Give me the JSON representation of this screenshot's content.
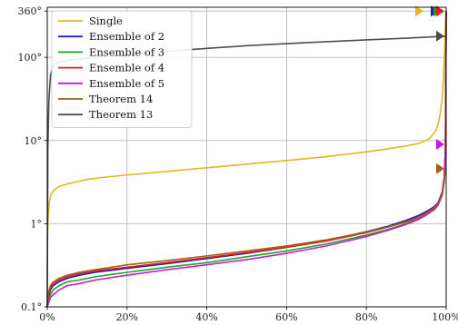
{
  "chart_data": {
    "type": "line",
    "title": "",
    "xlabel": "",
    "ylabel": "",
    "xlim": [
      0,
      100
    ],
    "ylim": [
      0.1,
      400
    ],
    "yscale": "log",
    "grid": true,
    "legend_position": "top-left",
    "x_ticks": [
      {
        "value": 0,
        "label": "0%"
      },
      {
        "value": 20,
        "label": "20%"
      },
      {
        "value": 40,
        "label": "40%"
      },
      {
        "value": 60,
        "label": "60%"
      },
      {
        "value": 80,
        "label": "80%"
      },
      {
        "value": 100,
        "label": "100%"
      }
    ],
    "y_ticks": [
      {
        "value": 0.1,
        "label": "0.1°"
      },
      {
        "value": 1,
        "label": "1°"
      },
      {
        "value": 10,
        "label": "10°"
      },
      {
        "value": 100,
        "label": "100°"
      },
      {
        "value": 360,
        "label": "360°"
      }
    ],
    "series": [
      {
        "name": "Single",
        "color": "#E6B422",
        "x": [
          0,
          0.2,
          0.5,
          1,
          2,
          3,
          5,
          8,
          10,
          15,
          20,
          30,
          40,
          50,
          60,
          70,
          80,
          85,
          90,
          93,
          95,
          96,
          97,
          97.5,
          98,
          98.5,
          99,
          99.3,
          99.6,
          99.8,
          100
        ],
        "y": [
          0.6,
          1.1,
          1.8,
          2.3,
          2.6,
          2.8,
          3.0,
          3.25,
          3.4,
          3.65,
          3.85,
          4.25,
          4.7,
          5.2,
          5.75,
          6.4,
          7.3,
          7.9,
          8.6,
          9.2,
          10.0,
          10.8,
          12.3,
          13.5,
          16.0,
          21.0,
          32.0,
          55.0,
          120,
          250,
          360
        ],
        "end_marker": 360
      },
      {
        "name": "Ensemble of 2",
        "color": "#1f1fbf",
        "x": [
          0,
          0.3,
          0.8,
          1.5,
          3,
          5,
          8,
          12,
          20,
          30,
          40,
          50,
          60,
          70,
          80,
          85,
          90,
          93,
          95,
          97,
          98,
          99,
          99.5,
          99.8,
          100
        ],
        "y": [
          0.1,
          0.13,
          0.16,
          0.18,
          0.2,
          0.22,
          0.24,
          0.26,
          0.29,
          0.33,
          0.38,
          0.44,
          0.52,
          0.63,
          0.8,
          0.92,
          1.1,
          1.25,
          1.4,
          1.6,
          1.8,
          2.4,
          3.6,
          8.0,
          360
        ],
        "end_marker": 360
      },
      {
        "name": "Ensemble of 3",
        "color": "#1aa61a",
        "x": [
          0,
          0.3,
          0.8,
          1.5,
          3,
          5,
          8,
          12,
          20,
          30,
          40,
          50,
          60,
          70,
          80,
          85,
          90,
          93,
          95,
          97,
          98,
          99,
          99.5,
          99.8,
          100
        ],
        "y": [
          0.1,
          0.12,
          0.14,
          0.16,
          0.18,
          0.2,
          0.21,
          0.23,
          0.26,
          0.3,
          0.34,
          0.4,
          0.47,
          0.57,
          0.73,
          0.84,
          1.0,
          1.15,
          1.3,
          1.5,
          1.7,
          2.2,
          3.3,
          7.5,
          360
        ],
        "end_marker": 360
      },
      {
        "name": "Ensemble of 4",
        "color": "#e01c1c",
        "x": [
          0,
          0.3,
          0.8,
          1.5,
          3,
          5,
          8,
          12,
          20,
          30,
          40,
          50,
          60,
          70,
          80,
          85,
          90,
          93,
          95,
          97,
          98,
          99,
          99.5,
          99.8,
          100
        ],
        "y": [
          0.1,
          0.14,
          0.17,
          0.19,
          0.21,
          0.23,
          0.25,
          0.27,
          0.3,
          0.34,
          0.39,
          0.45,
          0.52,
          0.62,
          0.78,
          0.9,
          1.06,
          1.2,
          1.35,
          1.55,
          1.75,
          2.3,
          3.4,
          7.8,
          360
        ],
        "end_marker": 360
      },
      {
        "name": "Ensemble of 5",
        "color": "#c21ce0",
        "x": [
          0,
          0.3,
          0.8,
          1.5,
          3,
          5,
          8,
          12,
          20,
          30,
          40,
          50,
          60,
          70,
          80,
          85,
          90,
          93,
          95,
          97,
          98,
          99,
          99.5,
          99.8,
          100
        ],
        "y": [
          0.1,
          0.11,
          0.13,
          0.14,
          0.16,
          0.18,
          0.19,
          0.21,
          0.24,
          0.28,
          0.32,
          0.37,
          0.44,
          0.54,
          0.7,
          0.82,
          0.98,
          1.12,
          1.27,
          1.47,
          1.67,
          2.2,
          3.2,
          7.2,
          9.0
        ],
        "end_marker": 9.0
      },
      {
        "name": "Theorem 14",
        "color": "#a0601c",
        "x": [
          0,
          0.3,
          0.8,
          1.5,
          3,
          5,
          8,
          12,
          20,
          30,
          40,
          50,
          60,
          70,
          80,
          85,
          90,
          93,
          95,
          97,
          98,
          99,
          99.5,
          99.8,
          100
        ],
        "y": [
          0.1,
          0.15,
          0.18,
          0.2,
          0.22,
          0.24,
          0.26,
          0.28,
          0.32,
          0.36,
          0.41,
          0.47,
          0.54,
          0.64,
          0.79,
          0.9,
          1.05,
          1.18,
          1.32,
          1.52,
          1.72,
          2.25,
          3.3,
          4.4,
          4.6
        ],
        "end_marker": 4.6
      },
      {
        "name": "Theorem 13",
        "color": "#4d4d4d",
        "x": [
          0,
          0.15,
          0.4,
          0.8,
          1.5,
          3,
          5,
          8,
          12,
          20,
          30,
          40,
          50,
          60,
          70,
          80,
          90,
          95,
          100
        ],
        "y": [
          0.1,
          8,
          30,
          60,
          80,
          88,
          92,
          95,
          100,
          108,
          118,
          128,
          138,
          146,
          154,
          162,
          170,
          175,
          180
        ],
        "end_marker": 180
      }
    ]
  }
}
